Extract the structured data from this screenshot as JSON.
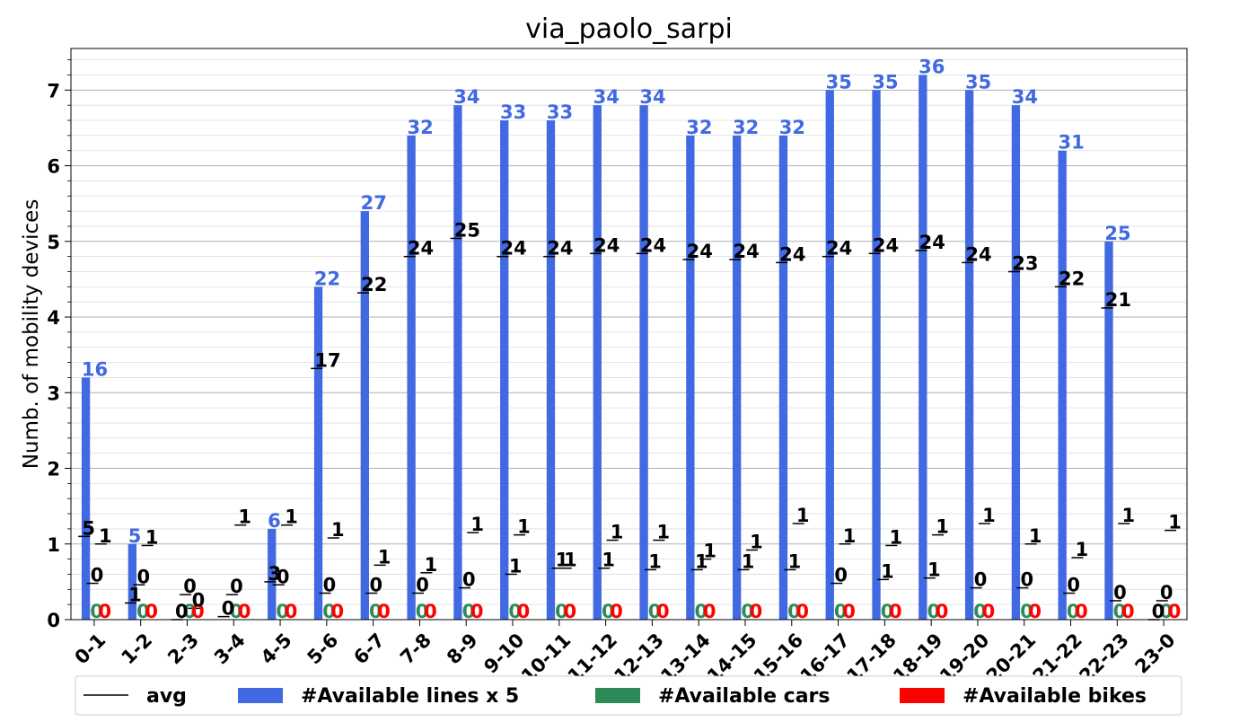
{
  "chart_data": {
    "type": "bar",
    "title": "via_paolo_sarpi",
    "xlabel": "",
    "ylabel": "Numb. of mobility devices",
    "ylim": [
      0,
      7.55
    ],
    "yticks": [
      0,
      1,
      2,
      3,
      4,
      5,
      6,
      7
    ],
    "grid": "horizontal major and minor",
    "legend_position": "bottom",
    "categories": [
      "0-1",
      "1-2",
      "2-3",
      "3-4",
      "4-5",
      "5-6",
      "6-7",
      "7-8",
      "8-9",
      "9-10",
      "10-11",
      "11-12",
      "12-13",
      "13-14",
      "14-15",
      "15-16",
      "16-17",
      "17-18",
      "18-19",
      "19-20",
      "20-21",
      "21-22",
      "22-23",
      "23-0"
    ],
    "series": [
      {
        "name": "#Available lines x 5",
        "color": "#4169e1",
        "values": [
          3.2,
          1.0,
          0,
          0,
          1.2,
          4.4,
          5.4,
          6.4,
          6.8,
          6.6,
          6.6,
          6.8,
          6.8,
          6.4,
          6.4,
          6.4,
          7.0,
          7.0,
          7.2,
          7.0,
          6.8,
          6.2,
          5.0,
          0
        ],
        "labels": [
          "16",
          "5",
          "",
          "",
          "6",
          "22",
          "27",
          "32",
          "34",
          "33",
          "33",
          "34",
          "34",
          "32",
          "32",
          "32",
          "35",
          "35",
          "36",
          "35",
          "34",
          "31",
          "25",
          ""
        ]
      },
      {
        "name": "#Available cars",
        "color": "#2e8b57",
        "values": [
          0,
          0,
          0,
          0,
          0,
          0,
          0,
          0,
          0,
          0,
          0,
          0,
          0,
          0,
          0,
          0,
          0,
          0,
          0,
          0,
          0,
          0,
          0,
          0
        ],
        "labels": [
          "0",
          "0",
          "0",
          "0",
          "0",
          "0",
          "0",
          "0",
          "0",
          "0",
          "0",
          "0",
          "0",
          "0",
          "0",
          "0",
          "0",
          "0",
          "0",
          "0",
          "0",
          "0",
          "0",
          "0"
        ]
      },
      {
        "name": "#Available bikes",
        "color": "#ff0000",
        "values": [
          0,
          0,
          0,
          0,
          0,
          0,
          0,
          0,
          0,
          0,
          0,
          0,
          0,
          0,
          0,
          0,
          0,
          0,
          0,
          0,
          0,
          0,
          0,
          0
        ],
        "labels": [
          "0",
          "0",
          "0",
          "0",
          "0",
          "0",
          "0",
          "0",
          "0",
          "0",
          "0",
          "0",
          "0",
          "0",
          "0",
          "0",
          "0",
          "0",
          "0",
          "0",
          "0",
          "0",
          "0",
          "0"
        ]
      }
    ],
    "avg": {
      "name": "avg",
      "color": "#000000",
      "lines": {
        "values": [
          1.1,
          0.22,
          0,
          0.04,
          0.5,
          3.32,
          4.32,
          4.8,
          5.04,
          4.8,
          4.8,
          4.84,
          4.84,
          4.76,
          4.76,
          4.72,
          4.8,
          4.84,
          4.88,
          4.72,
          4.6,
          4.4,
          4.12,
          0
        ],
        "labels": [
          "5",
          "1",
          "0",
          "0",
          "3",
          "17",
          "22",
          "24",
          "25",
          "24",
          "24",
          "24",
          "24",
          "24",
          "24",
          "24",
          "24",
          "24",
          "24",
          "24",
          "23",
          "22",
          "21",
          "0"
        ]
      },
      "cars": {
        "values": [
          0.48,
          0.46,
          0.33,
          0.33,
          0.46,
          0.35,
          0.35,
          0.35,
          0.42,
          0.6,
          0.68,
          0.68,
          0.66,
          0.66,
          0.66,
          0.66,
          0.48,
          0.53,
          0.55,
          0.42,
          0.42,
          0.35,
          0.25,
          0.25
        ],
        "labels": [
          "0",
          "0",
          "0",
          "0",
          "0",
          "0",
          "0",
          "0",
          "0",
          "1",
          "1",
          "1",
          "1",
          "1",
          "1",
          "1",
          "0",
          "1",
          "1",
          "0",
          "0",
          "0",
          "0",
          "0"
        ]
      },
      "bikes": {
        "values": [
          1.0,
          0.98,
          0.15,
          1.25,
          1.25,
          1.08,
          0.72,
          0.62,
          1.15,
          1.12,
          0.68,
          1.05,
          1.05,
          0.8,
          0.92,
          1.27,
          1.0,
          0.98,
          1.12,
          1.27,
          1.0,
          0.82,
          1.27,
          1.18
        ],
        "labels": [
          "1",
          "1",
          "0",
          "1",
          "1",
          "1",
          "1",
          "1",
          "1",
          "1",
          "1",
          "1",
          "1",
          "1",
          "1",
          "1",
          "1",
          "1",
          "1",
          "1",
          "1",
          "1",
          "1",
          "1"
        ]
      }
    }
  }
}
